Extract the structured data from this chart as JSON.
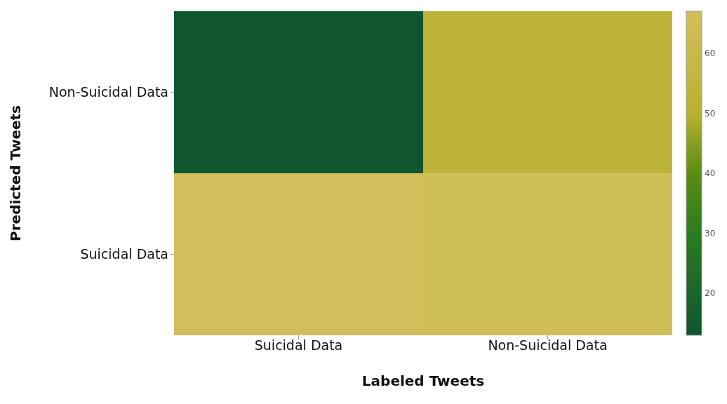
{
  "chart_data": {
    "type": "heatmap",
    "xlabel": "Labeled Tweets",
    "ylabel": "Predicted Tweets",
    "categories": [
      "Suicidal Data",
      "Non-Suicidal Data"
    ],
    "y_categories": [
      "Non-Suicidal Data",
      "Suicidal Data"
    ],
    "cells": [
      [
        13,
        53
      ],
      [
        67,
        66
      ]
    ],
    "clim": [
      13,
      67
    ],
    "cticks": [
      20,
      30,
      40,
      50,
      60
    ]
  }
}
